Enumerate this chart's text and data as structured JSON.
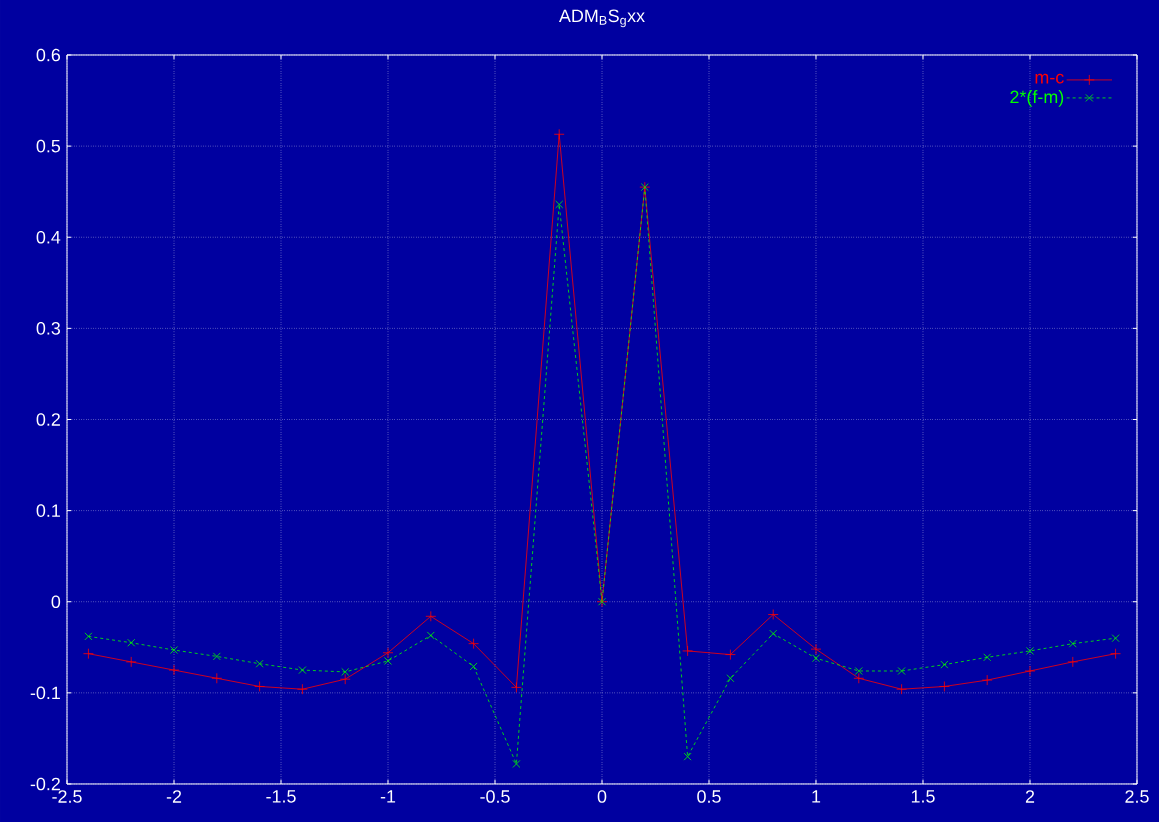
{
  "chart_data": {
    "type": "line",
    "title": "ADM$_{B}$S$_{g}$xx",
    "x": [
      -2.4,
      -2.2,
      -2.0,
      -1.8,
      -1.6,
      -1.4,
      -1.2,
      -1.0,
      -0.8,
      -0.6,
      -0.4,
      -0.2,
      0,
      0.2,
      0.4,
      0.6,
      0.8,
      1.0,
      1.2,
      1.4,
      1.6,
      1.8,
      2.0,
      2.2,
      2.4
    ],
    "series": [
      {
        "name": "m-c",
        "color": "#ff0000",
        "marker": "plus",
        "line_style": "solid",
        "values": [
          -0.057,
          -0.066,
          -0.075,
          -0.084,
          -0.093,
          -0.096,
          -0.085,
          -0.056,
          -0.016,
          -0.046,
          -0.094,
          0.513,
          0,
          0.455,
          -0.054,
          -0.058,
          -0.014,
          -0.052,
          -0.084,
          -0.096,
          -0.093,
          -0.086,
          -0.076,
          -0.066,
          -0.057
        ]
      },
      {
        "name": "2*(f-m)",
        "color": "#00ff00",
        "marker": "cross",
        "line_style": "dashed",
        "values": [
          -0.038,
          -0.045,
          -0.053,
          -0.06,
          -0.068,
          -0.075,
          -0.077,
          -0.065,
          -0.037,
          -0.071,
          -0.178,
          0.436,
          0,
          0.455,
          -0.17,
          -0.084,
          -0.035,
          -0.062,
          -0.076,
          -0.076,
          -0.069,
          -0.061,
          -0.054,
          -0.046,
          -0.04
        ]
      }
    ],
    "xlim": [
      -2.5,
      2.5
    ],
    "xticks": [
      -2.5,
      -2,
      -1.5,
      -1,
      -0.5,
      0,
      0.5,
      1,
      1.5,
      2,
      2.5
    ],
    "ylim": [
      -0.2,
      0.6
    ],
    "yticks": [
      -0.2,
      -0.1,
      0,
      0.1,
      0.2,
      0.3,
      0.4,
      0.5,
      0.6
    ],
    "grid": true,
    "legend": "top right"
  }
}
